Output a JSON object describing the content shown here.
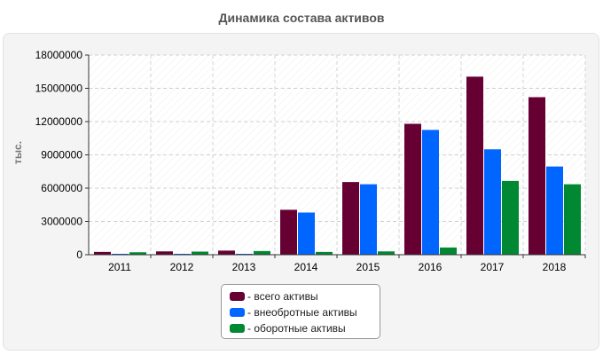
{
  "chart_data": {
    "type": "bar",
    "title": "Динамика состава активов",
    "xlabel": "",
    "ylabel": "тыс.",
    "ylim": [
      0,
      18000000
    ],
    "yticks": [
      "0",
      "3000000",
      "6000000",
      "9000000",
      "12000000",
      "15000000",
      "18000000"
    ],
    "ytick_values": [
      0,
      3000000,
      6000000,
      9000000,
      12000000,
      15000000,
      18000000
    ],
    "categories": [
      "2011",
      "2012",
      "2013",
      "2014",
      "2015",
      "2016",
      "2017",
      "2018"
    ],
    "series": [
      {
        "name": "- всего активы",
        "color": "#660033",
        "values": [
          250000,
          300000,
          370000,
          4050000,
          6550000,
          11800000,
          16050000,
          14200000
        ]
      },
      {
        "name": "- внеобротные активы",
        "color": "#0066ff",
        "values": [
          50000,
          50000,
          60000,
          3800000,
          6350000,
          11250000,
          9500000,
          7950000
        ]
      },
      {
        "name": "- оборотные активы",
        "color": "#008833",
        "values": [
          220000,
          280000,
          330000,
          250000,
          300000,
          650000,
          6650000,
          6350000
        ]
      }
    ],
    "grid": true,
    "legend_position": "bottom"
  }
}
